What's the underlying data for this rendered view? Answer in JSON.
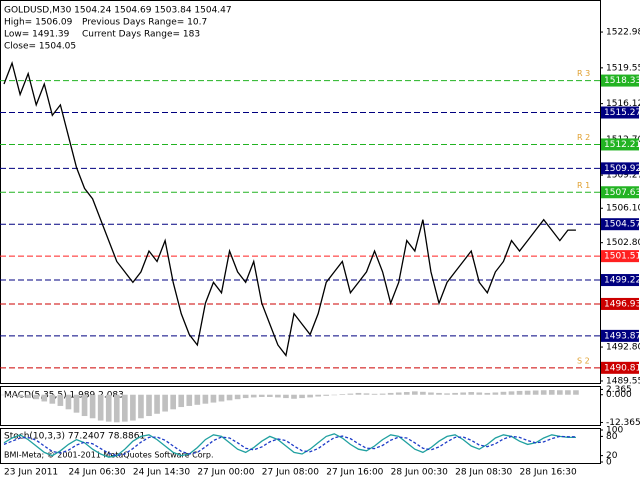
{
  "chart_data": [
    {
      "type": "line",
      "color": "#000000",
      "header": [
        "GOLDUSD,M30  1504.24 1504.69 1503.84 1504.47",
        "High= 1506.09",
        "Previous Days Range= 10.7",
        "Low= 1491.39",
        "Current Days Range= 183",
        "Close= 1504.05"
      ],
      "watermark": "BMI-Meta; © 2001-2011 MetaQuotes Software Corp.",
      "categories": [
        "23 Jun 2011",
        null,
        null,
        null,
        null,
        null,
        null,
        null,
        "24 Jun 06:30",
        null,
        null,
        null,
        null,
        null,
        null,
        null,
        "24 Jun 14:30",
        null,
        null,
        null,
        null,
        null,
        null,
        null,
        "27 Jun 00:00",
        null,
        null,
        null,
        null,
        null,
        null,
        null,
        "27 Jun 08:00",
        null,
        null,
        null,
        null,
        null,
        null,
        null,
        "27 Jun 16:00",
        null,
        null,
        null,
        null,
        null,
        null,
        null,
        "28 Jun 00:30",
        null,
        null,
        null,
        null,
        null,
        null,
        null,
        "28 Jun 08:30",
        null,
        null,
        null,
        null,
        null,
        null,
        null,
        "28 Jun 16:30",
        null,
        null,
        null,
        null,
        null,
        null,
        null
      ],
      "values": [
        1518,
        1520,
        1517,
        1519,
        1516,
        1518,
        1515,
        1516,
        1513,
        1510,
        1508,
        1507,
        1505,
        1503,
        1501,
        1500,
        1499,
        1500,
        1502,
        1501,
        1503,
        1499,
        1496,
        1494,
        1493,
        1497,
        1499,
        1498,
        1502,
        1500,
        1499,
        1501,
        1497,
        1495,
        1493,
        1492,
        1496,
        1495,
        1494,
        1496,
        1499,
        1500,
        1501,
        1498,
        1499,
        1500,
        1502,
        1500,
        1497,
        1499,
        1503,
        1502,
        1505,
        1500,
        1497,
        1499,
        1500,
        1501,
        1502,
        1499,
        1498,
        1500,
        1501,
        1503,
        1502,
        1503,
        1504,
        1505,
        1504,
        1503,
        1504,
        1504
      ],
      "ylim": [
        1489.26,
        1526.05
      ],
      "yticks": [
        1522.98,
        1519.55,
        1516.12,
        {
          "value": 1512.7,
          "label": "1512.70"
        },
        1509.27,
        {
          "value": 1506.1,
          "label": "1506.10"
        },
        {
          "value": 1502.8,
          "label": "1502.80"
        },
        {
          "value": 1492.8,
          "label": "1492.80"
        },
        1489.55
      ],
      "levels": [
        {
          "value": 1518.33,
          "color": "#22b322",
          "name": "R 3"
        },
        {
          "value": 1515.27,
          "color": "#000080"
        },
        {
          "value": 1512.21,
          "color": "#22b322",
          "name": "R 2"
        },
        {
          "value": 1509.92,
          "color": "#000080"
        },
        {
          "value": 1507.63,
          "color": "#22b322",
          "name": "R 1"
        },
        {
          "value": 1504.57,
          "color": "#000080"
        },
        {
          "value": 1501.51,
          "color": "#ff2020"
        },
        {
          "value": 1499.22,
          "color": "#000080"
        },
        {
          "value": 1496.93,
          "color": "#cc0000"
        },
        {
          "value": 1493.87,
          "color": "#000080"
        },
        {
          "value": 1490.81,
          "color": "#cc0000",
          "name": "S 2"
        }
      ]
    },
    {
      "type": "bar",
      "label": "MACD(5,35,5) 1.989 2.083",
      "color": "#c0c0c0",
      "values": [
        0,
        -0.5,
        -1,
        -1.5,
        -2,
        -3,
        -4,
        -5,
        -6.5,
        -8,
        -9.5,
        -10.5,
        -11.5,
        -12,
        -12.3,
        -12,
        -11.5,
        -10.5,
        -9.5,
        -8.5,
        -7.5,
        -6.5,
        -5.5,
        -5,
        -4.5,
        -4,
        -3.5,
        -3,
        -2.5,
        -2,
        -1.5,
        -1.2,
        -1,
        -1,
        -1.2,
        -1.5,
        -1.8,
        -1.5,
        -1.2,
        -0.8,
        -0.5,
        0,
        0.3,
        0.5,
        0.8,
        0.6,
        0.4,
        0.5,
        0.8,
        1,
        1.2,
        1.5,
        1.3,
        1,
        0.8,
        0.6,
        0.8,
        1,
        1.2,
        1,
        0.8,
        1,
        1.3,
        1.5,
        1.7,
        1.8,
        1.9,
        2,
        2.1,
        2,
        2,
        1.99
      ],
      "ylim": [
        -13.5,
        3
      ],
      "yticks": [
        2.365,
        {
          "value": 0,
          "label": "0.000"
        },
        -12.365
      ]
    },
    {
      "type": "line",
      "label": "Stoch(10,3,3) 77.2407 78.8861",
      "series": [
        {
          "color": "#20a0a0",
          "values": [
            60,
            75,
            85,
            70,
            50,
            30,
            20,
            35,
            55,
            70,
            60,
            40,
            25,
            15,
            20,
            40,
            65,
            80,
            85,
            70,
            50,
            30,
            20,
            25,
            45,
            70,
            85,
            80,
            60,
            40,
            30,
            45,
            65,
            80,
            70,
            50,
            30,
            25,
            40,
            60,
            80,
            88,
            75,
            55,
            40,
            35,
            50,
            70,
            85,
            80,
            60,
            40,
            30,
            45,
            65,
            80,
            85,
            70,
            50,
            40,
            55,
            75,
            85,
            80,
            65,
            55,
            60,
            75,
            85,
            80,
            77,
            77
          ]
        },
        {
          "color": "#1e3cc8",
          "values": [
            55,
            65,
            75,
            77,
            68,
            50,
            33,
            28,
            37,
            53,
            62,
            57,
            42,
            27,
            20,
            25,
            42,
            62,
            77,
            78,
            68,
            50,
            33,
            25,
            30,
            47,
            67,
            78,
            75,
            60,
            43,
            38,
            47,
            63,
            72,
            67,
            50,
            35,
            32,
            42,
            60,
            76,
            81,
            73,
            57,
            43,
            42,
            52,
            68,
            78,
            75,
            60,
            43,
            38,
            47,
            63,
            77,
            78,
            68,
            53,
            48,
            57,
            72,
            80,
            77,
            67,
            60,
            63,
            73,
            80,
            79,
            79
          ]
        }
      ],
      "ylim": [
        0,
        100
      ],
      "yticks": [
        100,
        80,
        20,
        0
      ]
    }
  ]
}
